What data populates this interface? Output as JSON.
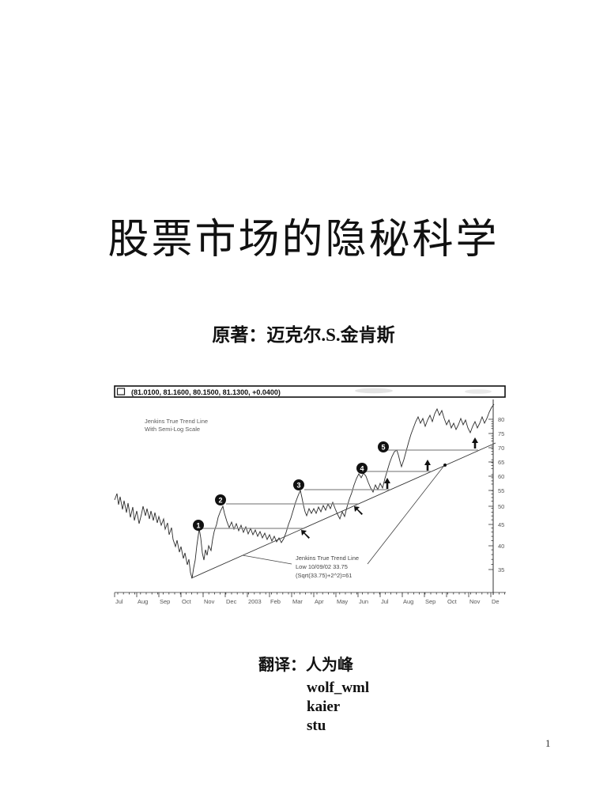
{
  "page": {
    "title": "股票市场的隐秘科学",
    "author_line": "原著：迈克尔.S.金肯斯",
    "page_number": "1"
  },
  "credits": {
    "label": "翻译：人为峰",
    "names": [
      "wolf_wml",
      "kaier",
      "stu"
    ]
  },
  "chart": {
    "window_title": "(81.0100, 81.1600, 80.1500, 81.1300, +0.0400)",
    "note_lines": [
      "Jenkins True Trend Line",
      "With Semi-Log Scale"
    ],
    "annotation_lines": [
      "Jenkins True Trend Line",
      "Low 10/09/02 33.75",
      "(Sqrt(33.75)+2^2)=61"
    ],
    "y_labels": [
      "80",
      "75",
      "70",
      "65",
      "60",
      "55",
      "50",
      "45",
      "40",
      "35"
    ],
    "x_labels": [
      "Jul",
      "Aug",
      "Sep",
      "Oct",
      "Nov",
      "Dec",
      "2003",
      "Feb",
      "Mar",
      "Apr",
      "May",
      "Jun",
      "Jul",
      "Aug",
      "Sep",
      "Oct",
      "Nov",
      "De"
    ],
    "markers": [
      "1",
      "2",
      "3",
      "4",
      "5"
    ]
  },
  "chart_data": {
    "type": "line",
    "title": "(81.0100, 81.1600, 80.1500, 81.1300, +0.0400)",
    "scale": "semi-log",
    "x_labels": [
      "Jul",
      "Aug",
      "Sep",
      "Oct",
      "Nov",
      "Dec",
      "2003",
      "Feb",
      "Mar",
      "Apr",
      "May",
      "Jun",
      "Jul",
      "Aug",
      "Sep",
      "Oct",
      "Nov",
      "Dec"
    ],
    "y_ticks": [
      80,
      75,
      70,
      65,
      60,
      55,
      50,
      45,
      40,
      35
    ],
    "ylim": [
      33,
      85
    ],
    "quote_ohlc": [
      81.01,
      81.16,
      80.15,
      81.13,
      0.04
    ],
    "low_point": {
      "date": "10/09/02",
      "price": 33.75
    },
    "trend_formula": "(Sqrt(33.75)+2^2)=61",
    "trend_target": 61,
    "swing_markers": [
      1,
      2,
      3,
      4,
      5
    ],
    "legend": "Jenkins True Trend Line With Semi-Log Scale"
  }
}
